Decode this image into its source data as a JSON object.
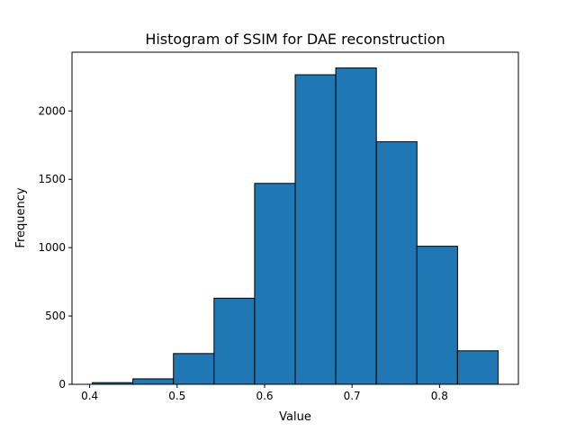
{
  "chart_data": {
    "type": "bar",
    "title": "Histogram of SSIM for DAE reconstruction",
    "xlabel": "Value",
    "ylabel": "Frequency",
    "bin_edges": [
      0.403,
      0.4494,
      0.4958,
      0.5422,
      0.5886,
      0.635,
      0.6814,
      0.7278,
      0.7742,
      0.8206,
      0.867
    ],
    "values": [
      12,
      40,
      225,
      630,
      1470,
      2265,
      2315,
      1775,
      1010,
      245
    ],
    "xlim": [
      0.3798,
      0.8902
    ],
    "ylim": [
      0,
      2430
    ],
    "xticks": [
      0.4,
      0.5,
      0.6,
      0.7,
      0.8
    ],
    "xtick_labels": [
      "0.4",
      "0.5",
      "0.6",
      "0.7",
      "0.8"
    ],
    "yticks": [
      0,
      500,
      1000,
      1500,
      2000
    ],
    "ytick_labels": [
      "0",
      "500",
      "1000",
      "1500",
      "2000"
    ],
    "bar_color": "#1f77b4",
    "edge_color": "#000000",
    "grid": false
  }
}
